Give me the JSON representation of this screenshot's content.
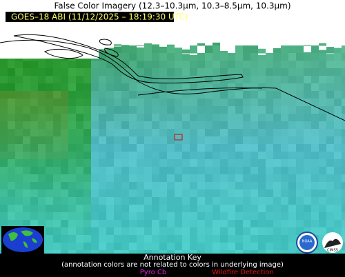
{
  "header": {
    "title": "False Color Imagery (12.3–10.3µm, 10.3–8.5µm, 10.3µm)",
    "subtitle": "GOES–18 ABI (11/12/2025 – 18:19:30 UTC)"
  },
  "annotation_key": {
    "title": "Annotation Key",
    "note": "(annotation colors are not related to colors in underlying image)",
    "items": [
      "Pyro Cb",
      "Wildfire Detection"
    ]
  },
  "logos": [
    "NOAA",
    "CIMSS"
  ]
}
